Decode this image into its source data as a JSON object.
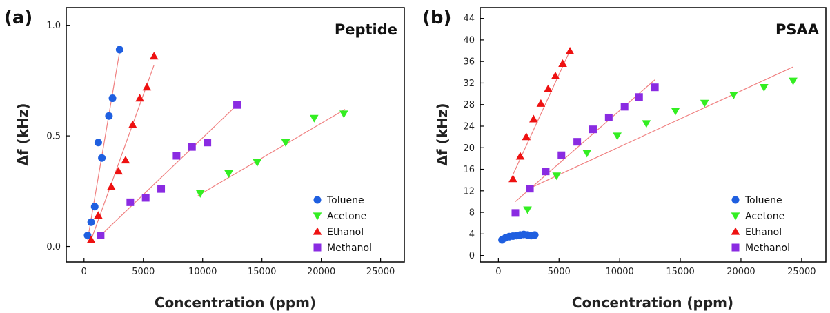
{
  "colors": {
    "Toluene": "#1f5fe0",
    "Acetone": "#33ee22",
    "Ethanol": "#ee1111",
    "Methanol": "#8a2be2",
    "fit": "#f08080"
  },
  "chart_data": [
    {
      "type": "scatter",
      "panel_label": "(a)",
      "title": "Peptide",
      "xlabel": "Concentration (ppm)",
      "ylabel": "Δf (kHz)",
      "xlim": [
        -1500,
        27000
      ],
      "ylim": [
        -0.07,
        1.08
      ],
      "xticks": [
        0,
        5000,
        10000,
        15000,
        20000,
        25000
      ],
      "yticks": [
        0.0,
        0.5,
        1.0
      ],
      "ytick_labels": [
        "0.0",
        "0.5",
        "1.0"
      ],
      "legend_position": "bottom-right",
      "series": [
        {
          "name": "Toluene",
          "marker": "circle",
          "x": [
            300,
            600,
            900,
            1200,
            1500,
            2100,
            2400,
            3000
          ],
          "y": [
            0.05,
            0.11,
            0.18,
            0.47,
            0.4,
            0.59,
            0.67,
            0.89
          ],
          "fit": [
            [
              300,
              0.03
            ],
            [
              3000,
              0.88
            ]
          ]
        },
        {
          "name": "Acetone",
          "marker": "triangle-down",
          "x": [
            9800,
            12200,
            14600,
            17000,
            19400,
            21900
          ],
          "y": [
            0.24,
            0.33,
            0.38,
            0.47,
            0.58,
            0.6
          ],
          "fit": [
            [
              9600,
              0.23
            ],
            [
              22000,
              0.62
            ]
          ]
        },
        {
          "name": "Ethanol",
          "marker": "triangle-up",
          "x": [
            600,
            1200,
            2300,
            2900,
            3500,
            4100,
            4700,
            5300,
            5900
          ],
          "y": [
            0.03,
            0.14,
            0.27,
            0.34,
            0.39,
            0.55,
            0.67,
            0.72,
            0.86
          ],
          "fit": [
            [
              600,
              0.03
            ],
            [
              5900,
              0.82
            ]
          ]
        },
        {
          "name": "Methanol",
          "marker": "square",
          "x": [
            1400,
            3900,
            5200,
            6500,
            7800,
            9100,
            10400,
            12900
          ],
          "y": [
            0.05,
            0.2,
            0.22,
            0.26,
            0.41,
            0.45,
            0.47,
            0.64
          ],
          "fit": [
            [
              1400,
              0.05
            ],
            [
              12900,
              0.64
            ]
          ]
        }
      ]
    },
    {
      "type": "scatter",
      "panel_label": "(b)",
      "title": "PSAA",
      "xlabel": "Concentration (ppm)",
      "ylabel": "Δf (kHz)",
      "xlim": [
        -1500,
        27000
      ],
      "ylim": [
        -1.2,
        46
      ],
      "xticks": [
        0,
        5000,
        10000,
        15000,
        20000,
        25000
      ],
      "yticks": [
        0,
        4,
        8,
        12,
        16,
        20,
        24,
        28,
        32,
        36,
        40,
        44
      ],
      "ytick_labels": [
        "0",
        "4",
        "8",
        "12",
        "16",
        "20",
        "24",
        "28",
        "32",
        "36",
        "40",
        "44"
      ],
      "legend_position": "bottom-right",
      "series": [
        {
          "name": "Toluene",
          "marker": "circle",
          "x": [
            300,
            600,
            900,
            1200,
            1500,
            1800,
            2100,
            2400,
            2700,
            3000
          ],
          "y": [
            2.9,
            3.3,
            3.5,
            3.6,
            3.7,
            3.8,
            3.9,
            3.8,
            3.7,
            3.8
          ],
          "fit": null
        },
        {
          "name": "Acetone",
          "marker": "triangle-down",
          "x": [
            2400,
            4800,
            7300,
            9800,
            12200,
            14600,
            17000,
            19400,
            21900,
            24300
          ],
          "y": [
            8.5,
            14.8,
            19.0,
            22.2,
            24.5,
            26.8,
            28.3,
            29.8,
            31.2,
            32.4
          ],
          "fit": [
            [
              2600,
              12.5
            ],
            [
              24300,
              35.0
            ]
          ]
        },
        {
          "name": "Ethanol",
          "marker": "triangle-up",
          "x": [
            1200,
            1800,
            2300,
            2900,
            3500,
            4100,
            4700,
            5300,
            5900
          ],
          "y": [
            14.2,
            18.4,
            22.0,
            25.3,
            28.2,
            30.9,
            33.3,
            35.6,
            37.9
          ],
          "fit": [
            [
              1200,
              15.0
            ],
            [
              5900,
              38.0
            ]
          ]
        },
        {
          "name": "Methanol",
          "marker": "square",
          "x": [
            1400,
            2600,
            3900,
            5200,
            6500,
            7800,
            9100,
            10400,
            11600,
            12900
          ],
          "y": [
            7.9,
            12.4,
            15.6,
            18.6,
            21.1,
            23.4,
            25.6,
            27.6,
            29.4,
            31.2
          ],
          "fit": [
            [
              1400,
              10.0
            ],
            [
              12900,
              32.6
            ]
          ]
        }
      ]
    }
  ]
}
